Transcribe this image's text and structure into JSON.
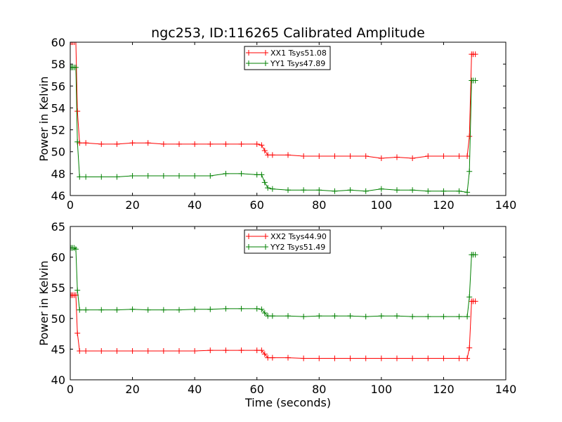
{
  "chart_data": {
    "title": "ngc253, ID:116265 Calibrated Amplitude",
    "xlabel": "Time (seconds)",
    "xlim": [
      0,
      140
    ],
    "xticks": [
      0,
      20,
      40,
      60,
      80,
      100,
      120,
      140
    ],
    "legend_position": "upper center",
    "grid": false,
    "marker": "+",
    "colors": {
      "red": "#ff0000",
      "green": "#008000"
    },
    "panels": [
      {
        "type": "line",
        "ylabel": "Power in Kelvin",
        "ylim": [
          46,
          60
        ],
        "yticks": [
          46,
          48,
          50,
          52,
          54,
          56,
          58,
          60
        ],
        "series": [
          {
            "name": "XX1 Tsys51.08",
            "color": "#ff0000",
            "x": [
              0.3,
              0.8,
              1.3,
              1.8,
              2.3,
              3,
              5,
              10,
              15,
              20,
              25,
              30,
              35,
              40,
              45,
              50,
              55,
              60,
              61.5,
              62.5,
              63.5,
              65,
              70,
              75,
              80,
              85,
              90,
              95,
              100,
              105,
              110,
              115,
              120,
              125,
              127.6,
              128.3,
              129,
              129.5,
              130.2
            ],
            "y": [
              60,
              60,
              60,
              60,
              53.7,
              50.8,
              50.8,
              50.7,
              50.7,
              50.8,
              50.8,
              50.7,
              50.7,
              50.7,
              50.7,
              50.7,
              50.7,
              50.7,
              50.6,
              50.1,
              49.7,
              49.7,
              49.7,
              49.6,
              49.6,
              49.6,
              49.6,
              49.6,
              49.4,
              49.5,
              49.4,
              49.6,
              49.6,
              49.6,
              49.6,
              51.4,
              58.9,
              58.9,
              58.9
            ]
          },
          {
            "name": "YY1 Tsys47.89",
            "color": "#008000",
            "x": [
              0.3,
              0.8,
              1.3,
              1.8,
              2.3,
              3,
              5,
              10,
              15,
              20,
              25,
              30,
              35,
              40,
              45,
              50,
              55,
              60,
              61.5,
              62.5,
              63.5,
              65,
              70,
              75,
              80,
              85,
              90,
              95,
              100,
              105,
              110,
              115,
              120,
              125,
              127.6,
              128.3,
              129,
              129.5,
              130.2
            ],
            "y": [
              57.7,
              57.7,
              57.7,
              57.7,
              50.9,
              47.7,
              47.7,
              47.7,
              47.7,
              47.8,
              47.8,
              47.8,
              47.8,
              47.8,
              47.8,
              48,
              48,
              47.9,
              47.9,
              47.2,
              46.7,
              46.6,
              46.5,
              46.5,
              46.5,
              46.4,
              46.5,
              46.4,
              46.6,
              46.5,
              46.5,
              46.4,
              46.4,
              46.4,
              46.3,
              48.2,
              56.5,
              56.5,
              56.5
            ]
          }
        ]
      },
      {
        "type": "line",
        "ylabel": "Power in Kelvin",
        "ylim": [
          40,
          65
        ],
        "yticks": [
          40,
          45,
          50,
          55,
          60,
          65
        ],
        "series": [
          {
            "name": "XX2 Tsys44.90",
            "color": "#ff0000",
            "x": [
              0.3,
              0.8,
              1.3,
              1.8,
              2.3,
              3,
              5,
              10,
              15,
              20,
              25,
              30,
              35,
              40,
              45,
              50,
              55,
              60,
              61.5,
              62.5,
              63.5,
              65,
              70,
              75,
              80,
              85,
              90,
              95,
              100,
              105,
              110,
              115,
              120,
              125,
              127.6,
              128.3,
              129,
              129.5,
              130.2
            ],
            "y": [
              53.8,
              53.8,
              53.8,
              53.8,
              47.6,
              44.7,
              44.7,
              44.7,
              44.7,
              44.7,
              44.7,
              44.7,
              44.7,
              44.7,
              44.8,
              44.8,
              44.8,
              44.8,
              44.8,
              44.2,
              43.6,
              43.6,
              43.6,
              43.5,
              43.5,
              43.5,
              43.5,
              43.5,
              43.5,
              43.5,
              43.5,
              43.5,
              43.5,
              43.5,
              43.5,
              45.2,
              52.8,
              52.8,
              52.8
            ]
          },
          {
            "name": "YY2 Tsys51.49",
            "color": "#008000",
            "x": [
              0.3,
              0.8,
              1.3,
              1.8,
              2.3,
              3,
              5,
              10,
              15,
              20,
              25,
              30,
              35,
              40,
              45,
              50,
              55,
              60,
              61.5,
              62.5,
              63.5,
              65,
              70,
              75,
              80,
              85,
              90,
              95,
              100,
              105,
              110,
              115,
              120,
              125,
              127.6,
              128.3,
              129,
              129.5,
              130.2
            ],
            "y": [
              61.5,
              61.5,
              61.5,
              61.3,
              54.6,
              51.4,
              51.4,
              51.4,
              51.4,
              51.5,
              51.4,
              51.4,
              51.4,
              51.5,
              51.5,
              51.6,
              51.6,
              51.6,
              51.5,
              50.9,
              50.4,
              50.4,
              50.4,
              50.3,
              50.4,
              50.4,
              50.4,
              50.3,
              50.4,
              50.4,
              50.3,
              50.3,
              50.3,
              50.3,
              50.3,
              53.5,
              60.4,
              60.4,
              60.4
            ]
          }
        ]
      }
    ]
  }
}
